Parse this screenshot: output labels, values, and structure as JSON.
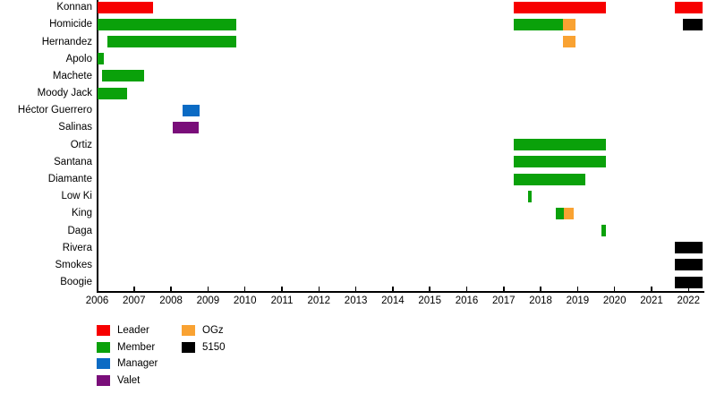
{
  "chart_data": {
    "type": "gantt",
    "title": "",
    "x_axis": {
      "min": 2006,
      "max": 2022.4,
      "ticks": [
        2006,
        2007,
        2008,
        2009,
        2010,
        2011,
        2012,
        2013,
        2014,
        2015,
        2016,
        2017,
        2018,
        2019,
        2020,
        2021,
        2022
      ]
    },
    "legend_position": "bottom-left",
    "grid": false,
    "legend": [
      {
        "label": "Leader",
        "color": "#f70000"
      },
      {
        "label": "Member",
        "color": "#0aa10a"
      },
      {
        "label": "Manager",
        "color": "#0b6bc4"
      },
      {
        "label": "Valet",
        "color": "#7a0e7a"
      },
      {
        "label": "OGz",
        "color": "#f9a232"
      },
      {
        "label": "5150",
        "color": "#000000"
      }
    ],
    "rows": [
      {
        "label": "Konnan",
        "bars": [
          {
            "start": 2006.02,
            "end": 2007.51,
            "role": "Leader"
          },
          {
            "start": 2017.27,
            "end": 2019.76,
            "role": "Leader"
          },
          {
            "start": 2021.63,
            "end": 2022.39,
            "role": "Leader"
          }
        ]
      },
      {
        "label": "Homicide",
        "bars": [
          {
            "start": 2006.02,
            "end": 2009.76,
            "role": "Member"
          },
          {
            "start": 2017.27,
            "end": 2018.6,
            "role": "Member"
          },
          {
            "start": 2018.6,
            "end": 2018.93,
            "role": "OGz"
          },
          {
            "start": 2021.85,
            "end": 2022.39,
            "role": "5150"
          }
        ]
      },
      {
        "label": "Hernandez",
        "bars": [
          {
            "start": 2006.28,
            "end": 2009.76,
            "role": "Member"
          },
          {
            "start": 2018.6,
            "end": 2018.93,
            "role": "OGz"
          }
        ]
      },
      {
        "label": "Apolo",
        "bars": [
          {
            "start": 2006.02,
            "end": 2006.17,
            "role": "Member"
          }
        ]
      },
      {
        "label": "Machete",
        "bars": [
          {
            "start": 2006.13,
            "end": 2007.27,
            "role": "Member"
          }
        ]
      },
      {
        "label": "Moody Jack",
        "bars": [
          {
            "start": 2006.02,
            "end": 2006.81,
            "role": "Member"
          }
        ]
      },
      {
        "label": "Héctor Guerrero",
        "bars": [
          {
            "start": 2008.31,
            "end": 2008.77,
            "role": "Manager"
          }
        ]
      },
      {
        "label": "Salinas",
        "bars": [
          {
            "start": 2008.05,
            "end": 2008.75,
            "role": "Valet"
          }
        ]
      },
      {
        "label": "Ortiz",
        "bars": [
          {
            "start": 2017.27,
            "end": 2019.76,
            "role": "Member"
          }
        ]
      },
      {
        "label": "Santana",
        "bars": [
          {
            "start": 2017.27,
            "end": 2019.76,
            "role": "Member"
          }
        ]
      },
      {
        "label": "Diamante",
        "bars": [
          {
            "start": 2017.28,
            "end": 2019.2,
            "role": "Member"
          }
        ]
      },
      {
        "label": "Low Ki",
        "bars": [
          {
            "start": 2017.67,
            "end": 2017.76,
            "role": "Member"
          }
        ]
      },
      {
        "label": "King",
        "bars": [
          {
            "start": 2018.41,
            "end": 2018.62,
            "role": "Member"
          },
          {
            "start": 2018.62,
            "end": 2018.9,
            "role": "OGz"
          }
        ]
      },
      {
        "label": "Daga",
        "bars": [
          {
            "start": 2019.65,
            "end": 2019.76,
            "role": "Member"
          }
        ]
      },
      {
        "label": "Rivera",
        "bars": [
          {
            "start": 2021.62,
            "end": 2022.39,
            "role": "5150"
          }
        ]
      },
      {
        "label": "Smokes",
        "bars": [
          {
            "start": 2021.62,
            "end": 2022.39,
            "role": "5150"
          }
        ]
      },
      {
        "label": "Boogie",
        "bars": [
          {
            "start": 2021.62,
            "end": 2022.38,
            "role": "5150"
          }
        ]
      }
    ]
  }
}
